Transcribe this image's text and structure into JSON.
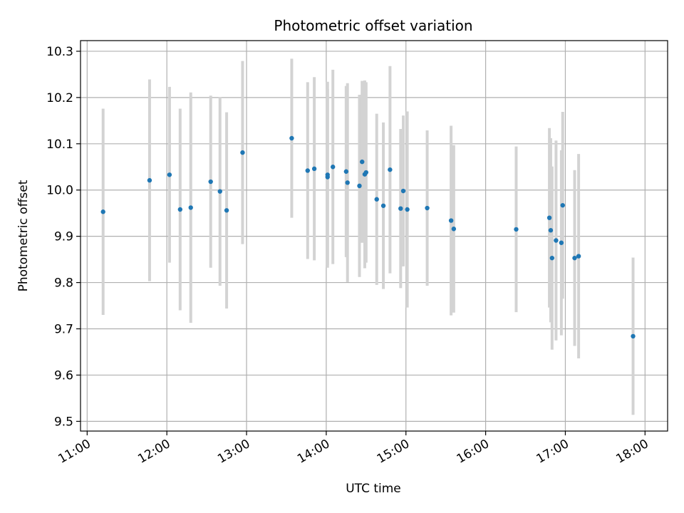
{
  "chart_data": {
    "type": "scatter",
    "title": "Photometric offset variation",
    "xlabel": "UTC time",
    "ylabel": "Photometric offset",
    "x_ticks": [
      "11:00",
      "12:00",
      "13:00",
      "14:00",
      "15:00",
      "16:00",
      "17:00",
      "18:00"
    ],
    "y_ticks": [
      "9.5",
      "9.6",
      "9.7",
      "9.8",
      "9.9",
      "10.0",
      "10.1",
      "10.2",
      "10.3"
    ],
    "xlim": [
      "10:55",
      "18:17"
    ],
    "ylim": [
      9.479,
      10.323
    ],
    "grid": true,
    "colors": {
      "point": "#1f77b4",
      "errorbar": "#d3d3d3",
      "grid": "#b0b0b0"
    },
    "points": [
      {
        "x": "11:12",
        "y": 9.953,
        "err": 0.223
      },
      {
        "x": "11:47",
        "y": 10.021,
        "err": 0.218
      },
      {
        "x": "12:02",
        "y": 10.033,
        "err": 0.19
      },
      {
        "x": "12:10",
        "y": 9.958,
        "err": 0.218
      },
      {
        "x": "12:18",
        "y": 9.962,
        "err": 0.249
      },
      {
        "x": "12:33",
        "y": 10.018,
        "err": 0.186
      },
      {
        "x": "12:40",
        "y": 9.997,
        "err": 0.204
      },
      {
        "x": "12:45",
        "y": 9.956,
        "err": 0.212
      },
      {
        "x": "12:57",
        "y": 10.081,
        "err": 0.198
      },
      {
        "x": "13:34",
        "y": 10.112,
        "err": 0.172
      },
      {
        "x": "13:46",
        "y": 10.042,
        "err": 0.191
      },
      {
        "x": "13:51",
        "y": 10.046,
        "err": 0.198
      },
      {
        "x": "14:01",
        "y": 10.033,
        "err": 0.201
      },
      {
        "x": "14:01",
        "y": 10.028,
        "err": 0.19
      },
      {
        "x": "14:05",
        "y": 10.05,
        "err": 0.21
      },
      {
        "x": "14:15",
        "y": 10.04,
        "err": 0.185
      },
      {
        "x": "14:16",
        "y": 10.016,
        "err": 0.215
      },
      {
        "x": "14:25",
        "y": 10.009,
        "err": 0.197
      },
      {
        "x": "14:27",
        "y": 10.061,
        "err": 0.175
      },
      {
        "x": "14:29",
        "y": 10.034,
        "err": 0.203
      },
      {
        "x": "14:30",
        "y": 10.038,
        "err": 0.195
      },
      {
        "x": "14:38",
        "y": 9.98,
        "err": 0.185
      },
      {
        "x": "14:43",
        "y": 9.966,
        "err": 0.18
      },
      {
        "x": "14:48",
        "y": 10.044,
        "err": 0.224
      },
      {
        "x": "14:56",
        "y": 9.96,
        "err": 0.172
      },
      {
        "x": "14:58",
        "y": 9.998,
        "err": 0.163
      },
      {
        "x": "15:01",
        "y": 9.958,
        "err": 0.212
      },
      {
        "x": "15:16",
        "y": 9.961,
        "err": 0.168
      },
      {
        "x": "15:34",
        "y": 9.934,
        "err": 0.205
      },
      {
        "x": "15:36",
        "y": 9.916,
        "err": 0.181
      },
      {
        "x": "16:23",
        "y": 9.915,
        "err": 0.179
      },
      {
        "x": "16:48",
        "y": 9.94,
        "err": 0.194
      },
      {
        "x": "16:49",
        "y": 9.913,
        "err": 0.199
      },
      {
        "x": "16:50",
        "y": 9.853,
        "err": 0.198
      },
      {
        "x": "16:53",
        "y": 9.891,
        "err": 0.216
      },
      {
        "x": "16:57",
        "y": 9.886,
        "err": 0.2
      },
      {
        "x": "16:58",
        "y": 9.967,
        "err": 0.202
      },
      {
        "x": "17:07",
        "y": 9.853,
        "err": 0.19
      },
      {
        "x": "17:10",
        "y": 9.857,
        "err": 0.221
      },
      {
        "x": "17:51",
        "y": 9.684,
        "err": 0.17
      }
    ]
  }
}
